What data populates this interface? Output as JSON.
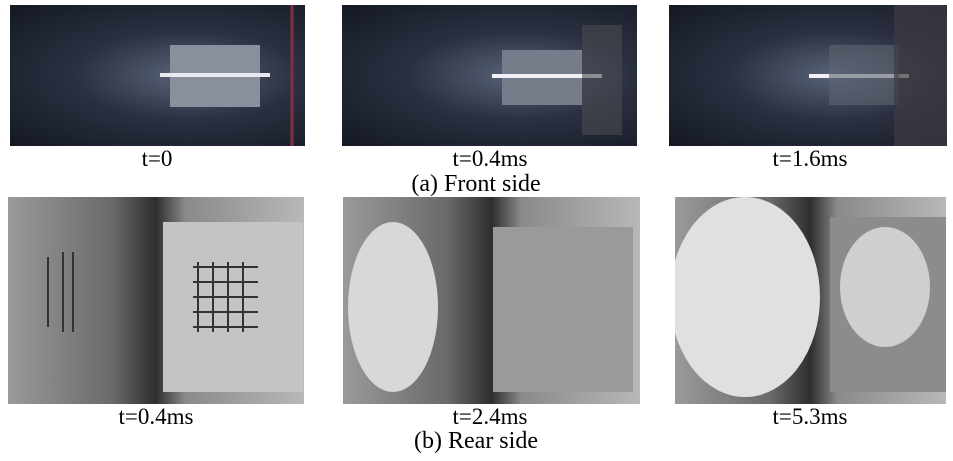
{
  "panels": [
    {
      "caption": "(a) Front side",
      "frames": [
        {
          "label": "t=0"
        },
        {
          "label": "t=0.4ms"
        },
        {
          "label": "t=1.6ms"
        }
      ]
    },
    {
      "caption": "(b) Rear side",
      "frames": [
        {
          "label": "t=0.4ms"
        },
        {
          "label": "t=2.4ms"
        },
        {
          "label": "t=5.3ms"
        }
      ]
    }
  ]
}
